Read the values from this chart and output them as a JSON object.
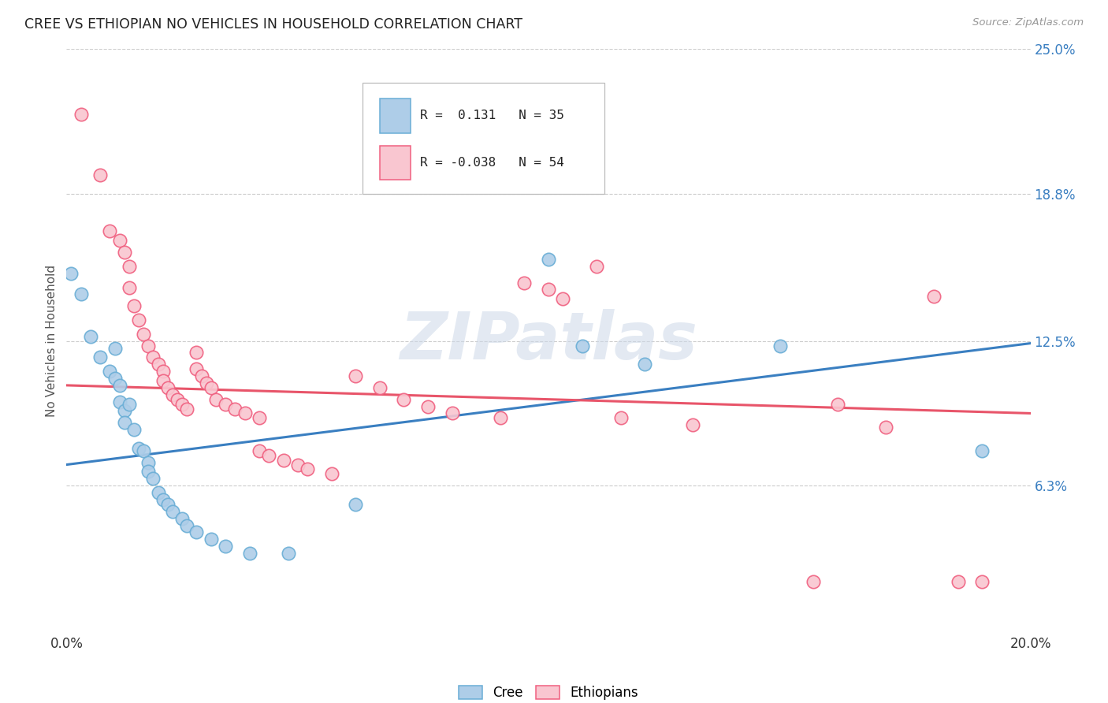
{
  "title": "CREE VS ETHIOPIAN NO VEHICLES IN HOUSEHOLD CORRELATION CHART",
  "source": "Source: ZipAtlas.com",
  "ylabel": "No Vehicles in Household",
  "xlim": [
    0.0,
    0.2
  ],
  "ylim": [
    0.0,
    0.25
  ],
  "xticks": [
    0.0,
    0.04,
    0.08,
    0.12,
    0.16,
    0.2
  ],
  "xticklabels": [
    "0.0%",
    "",
    "",
    "",
    "",
    "20.0%"
  ],
  "ytick_positions": [
    0.063,
    0.125,
    0.188,
    0.25
  ],
  "ytick_labels": [
    "6.3%",
    "12.5%",
    "18.8%",
    "25.0%"
  ],
  "cree_fill_color": "#aecde8",
  "cree_edge_color": "#6aaed6",
  "ethiopian_fill_color": "#f9c6d0",
  "ethiopian_edge_color": "#f06080",
  "cree_line_color": "#3a7fc1",
  "ethiopian_line_color": "#e8556a",
  "cree_R": "0.131",
  "cree_N": "35",
  "ethiopian_R": "-0.038",
  "ethiopian_N": "54",
  "watermark_text": "ZIPatlas",
  "cree_line_y0": 0.072,
  "cree_line_y1": 0.124,
  "eth_line_y0": 0.106,
  "eth_line_y1": 0.094,
  "cree_points": [
    [
      0.001,
      0.154
    ],
    [
      0.003,
      0.145
    ],
    [
      0.005,
      0.127
    ],
    [
      0.007,
      0.118
    ],
    [
      0.009,
      0.112
    ],
    [
      0.01,
      0.122
    ],
    [
      0.01,
      0.109
    ],
    [
      0.011,
      0.106
    ],
    [
      0.011,
      0.099
    ],
    [
      0.012,
      0.095
    ],
    [
      0.012,
      0.09
    ],
    [
      0.013,
      0.098
    ],
    [
      0.014,
      0.087
    ],
    [
      0.015,
      0.079
    ],
    [
      0.016,
      0.078
    ],
    [
      0.017,
      0.073
    ],
    [
      0.017,
      0.069
    ],
    [
      0.018,
      0.066
    ],
    [
      0.019,
      0.06
    ],
    [
      0.02,
      0.057
    ],
    [
      0.021,
      0.055
    ],
    [
      0.022,
      0.052
    ],
    [
      0.024,
      0.049
    ],
    [
      0.025,
      0.046
    ],
    [
      0.027,
      0.043
    ],
    [
      0.03,
      0.04
    ],
    [
      0.033,
      0.037
    ],
    [
      0.038,
      0.034
    ],
    [
      0.046,
      0.034
    ],
    [
      0.06,
      0.055
    ],
    [
      0.1,
      0.16
    ],
    [
      0.107,
      0.123
    ],
    [
      0.12,
      0.115
    ],
    [
      0.148,
      0.123
    ],
    [
      0.19,
      0.078
    ]
  ],
  "ethiopian_points": [
    [
      0.003,
      0.222
    ],
    [
      0.007,
      0.196
    ],
    [
      0.009,
      0.172
    ],
    [
      0.011,
      0.168
    ],
    [
      0.012,
      0.163
    ],
    [
      0.013,
      0.157
    ],
    [
      0.013,
      0.148
    ],
    [
      0.014,
      0.14
    ],
    [
      0.015,
      0.134
    ],
    [
      0.016,
      0.128
    ],
    [
      0.017,
      0.123
    ],
    [
      0.018,
      0.118
    ],
    [
      0.019,
      0.115
    ],
    [
      0.02,
      0.112
    ],
    [
      0.02,
      0.108
    ],
    [
      0.021,
      0.105
    ],
    [
      0.022,
      0.102
    ],
    [
      0.023,
      0.1
    ],
    [
      0.024,
      0.098
    ],
    [
      0.025,
      0.096
    ],
    [
      0.027,
      0.12
    ],
    [
      0.027,
      0.113
    ],
    [
      0.028,
      0.11
    ],
    [
      0.029,
      0.107
    ],
    [
      0.03,
      0.105
    ],
    [
      0.031,
      0.1
    ],
    [
      0.033,
      0.098
    ],
    [
      0.035,
      0.096
    ],
    [
      0.037,
      0.094
    ],
    [
      0.04,
      0.092
    ],
    [
      0.04,
      0.078
    ],
    [
      0.042,
      0.076
    ],
    [
      0.045,
      0.074
    ],
    [
      0.048,
      0.072
    ],
    [
      0.05,
      0.07
    ],
    [
      0.055,
      0.068
    ],
    [
      0.06,
      0.11
    ],
    [
      0.065,
      0.105
    ],
    [
      0.07,
      0.1
    ],
    [
      0.075,
      0.097
    ],
    [
      0.08,
      0.094
    ],
    [
      0.09,
      0.092
    ],
    [
      0.095,
      0.15
    ],
    [
      0.1,
      0.147
    ],
    [
      0.103,
      0.143
    ],
    [
      0.11,
      0.157
    ],
    [
      0.115,
      0.092
    ],
    [
      0.13,
      0.089
    ],
    [
      0.155,
      0.022
    ],
    [
      0.16,
      0.098
    ],
    [
      0.17,
      0.088
    ],
    [
      0.18,
      0.144
    ],
    [
      0.185,
      0.022
    ],
    [
      0.19,
      0.022
    ]
  ]
}
